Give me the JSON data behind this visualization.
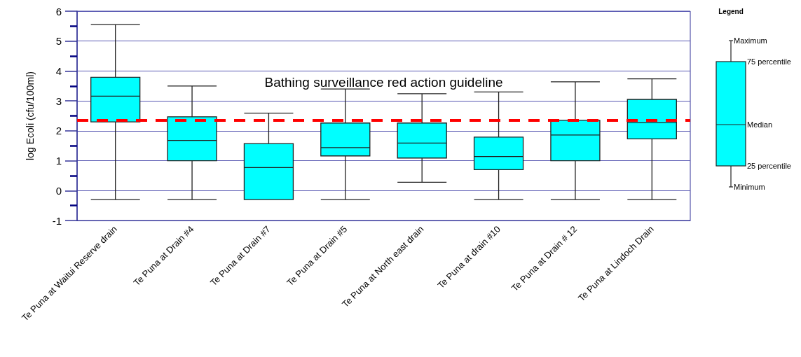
{
  "chart_data": {
    "type": "box",
    "ylabel": "log Ecoli (cfu/100ml)",
    "legend_title": "Legend",
    "categories": [
      "Te Puna at Waitui Reserve drain",
      "Te Puna at Drain #4",
      "Te Puna at Drain #7",
      "Te Puna at Drain #5",
      "Te Puna at North east drain",
      "Te Puna at drain #10",
      "Te Puna at Drain # 12",
      "Te Puna at Lindoch Drain"
    ],
    "series": [
      {
        "color": "#00ffff",
        "boxes": [
          {
            "low": -0.3,
            "q1": 2.3,
            "median": 3.16,
            "q3": 3.79,
            "high": 5.55
          },
          {
            "low": -0.3,
            "q1": 1.0,
            "median": 1.68,
            "q3": 2.47,
            "high": 3.5
          },
          {
            "low": -0.3,
            "q1": -0.3,
            "median": 0.77,
            "q3": 1.57,
            "high": 2.59
          },
          {
            "low": -0.3,
            "q1": 1.16,
            "median": 1.44,
            "q3": 2.26,
            "high": 3.4
          },
          {
            "low": 0.28,
            "q1": 1.09,
            "median": 1.59,
            "q3": 2.26,
            "high": 3.24
          },
          {
            "low": -0.3,
            "q1": 0.7,
            "median": 1.14,
            "q3": 1.79,
            "high": 3.3
          },
          {
            "low": -0.3,
            "q1": 1.0,
            "median": 1.86,
            "q3": 2.35,
            "high": 3.64
          },
          {
            "low": -0.3,
            "q1": 1.73,
            "median": 2.27,
            "q3": 3.05,
            "high": 3.74
          }
        ]
      }
    ],
    "ylim": [
      -1,
      6
    ],
    "yticks": [
      -1,
      {
        "value": -0.5,
        "label": null
      },
      0,
      {
        "value": 0.5,
        "label": null
      },
      1,
      {
        "value": 1.5,
        "label": null
      },
      2,
      {
        "value": 2.5,
        "label": null
      },
      3,
      {
        "value": 3.5,
        "label": null
      },
      4,
      {
        "value": 4.5,
        "label": null
      },
      5,
      {
        "value": 5.5,
        "label": null
      },
      6
    ],
    "grid": "y",
    "ref_lines": [
      {
        "axis": "y",
        "value": 2.36,
        "label": "Bathing surveillance red action guideline",
        "color": "#ff0000",
        "line_style": "dashed"
      }
    ],
    "annotations": [
      "Maximum",
      "75 percentile",
      "Median",
      "25 percentile",
      "Minimum"
    ]
  }
}
